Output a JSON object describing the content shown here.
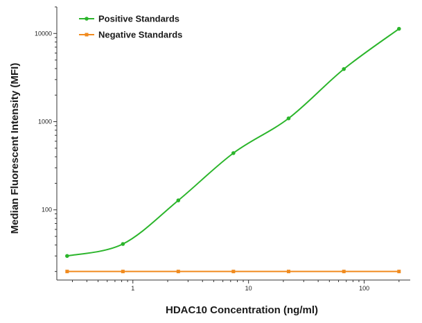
{
  "chart_data": {
    "type": "scatter",
    "xlabel": "HDAC10 Concentration (ng/ml)",
    "ylabel": "Median Fluorescent Intensity (MFI)",
    "x_scale": "log",
    "y_scale": "log",
    "xlim": [
      0.22,
      250
    ],
    "ylim": [
      16,
      20000
    ],
    "x_ticks": [
      {
        "value": 1,
        "label": "1"
      },
      {
        "value": 10,
        "label": "10"
      },
      {
        "value": 100,
        "label": "100"
      }
    ],
    "y_ticks": [
      {
        "value": 100,
        "label": "100"
      },
      {
        "value": 1000,
        "label": "1000"
      },
      {
        "value": 10000,
        "label": "10000"
      }
    ],
    "legend_position": "top-left",
    "grid": false,
    "series": [
      {
        "name": "Positive Standards",
        "color": "#2bb52b",
        "marker": "circle",
        "fit_curve": true,
        "x": [
          0.27,
          0.82,
          2.47,
          7.4,
          22.2,
          66.7,
          200
        ],
        "y": [
          30,
          41,
          128,
          440,
          1090,
          3950,
          11300
        ]
      },
      {
        "name": "Negative Standards",
        "color": "#f08a1e",
        "marker": "square",
        "fit_curve": false,
        "x": [
          0.27,
          0.82,
          2.47,
          7.4,
          22.2,
          66.7,
          200
        ],
        "y": [
          20,
          20,
          20,
          20,
          20,
          20,
          20
        ]
      }
    ]
  }
}
